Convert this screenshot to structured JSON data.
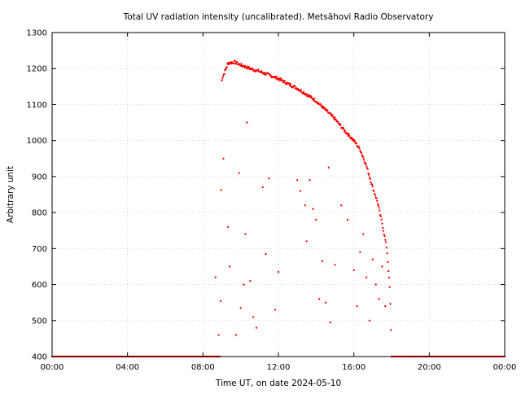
{
  "chart_data": {
    "type": "scatter",
    "title": "Total UV radiation intensity (uncalibrated). Metsähovi Radio Observatory",
    "xlabel": "Time UT, on date 2024-05-10",
    "ylabel": "Arbitrary unit",
    "xlim": [
      "00:00",
      "24:00"
    ],
    "ylim": [
      400,
      1300
    ],
    "x_ticks": [
      "00:00",
      "04:00",
      "08:00",
      "12:00",
      "16:00",
      "20:00",
      "00:00"
    ],
    "y_ticks": [
      400,
      500,
      600,
      700,
      800,
      900,
      1000,
      1100,
      1200,
      1300
    ],
    "grid": true,
    "color": "#ff0000",
    "series": [
      {
        "envelope": [
          [
            "00:00",
            400
          ],
          [
            "08:00",
            400
          ],
          [
            "08:55",
            400
          ],
          [
            "09:00",
            1170
          ],
          [
            "09:20",
            1215
          ],
          [
            "09:40",
            1218
          ],
          [
            "10:00",
            1210
          ],
          [
            "10:30",
            1200
          ],
          [
            "11:00",
            1192
          ],
          [
            "11:30",
            1182
          ],
          [
            "12:00",
            1172
          ],
          [
            "12:30",
            1158
          ],
          [
            "13:00",
            1145
          ],
          [
            "13:30",
            1128
          ],
          [
            "14:00",
            1110
          ],
          [
            "14:30",
            1085
          ],
          [
            "15:00",
            1060
          ],
          [
            "15:30",
            1028
          ],
          [
            "16:00",
            1000
          ],
          [
            "16:20",
            975
          ],
          [
            "16:40",
            930
          ],
          [
            "17:00",
            870
          ],
          [
            "17:15",
            830
          ],
          [
            "17:30",
            770
          ],
          [
            "17:45",
            700
          ],
          [
            "17:55",
            580
          ],
          [
            "18:00",
            400
          ],
          [
            "24:00",
            400
          ]
        ],
        "scatter_below_envelope": [
          [
            "08:40",
            620
          ],
          [
            "08:50",
            460
          ],
          [
            "09:05",
            950
          ],
          [
            "09:20",
            760
          ],
          [
            "09:25",
            650
          ],
          [
            "09:45",
            460
          ],
          [
            "09:55",
            910
          ],
          [
            "10:00",
            535
          ],
          [
            "10:10",
            600
          ],
          [
            "10:15",
            740
          ],
          [
            "10:20",
            1050
          ],
          [
            "10:30",
            610
          ],
          [
            "10:40",
            510
          ],
          [
            "10:50",
            480
          ],
          [
            "11:10",
            870
          ],
          [
            "11:20",
            685
          ],
          [
            "11:30",
            895
          ],
          [
            "11:50",
            530
          ],
          [
            "12:00",
            635
          ],
          [
            "13:00",
            890
          ],
          [
            "13:10",
            860
          ],
          [
            "13:25",
            820
          ],
          [
            "13:30",
            720
          ],
          [
            "13:40",
            890
          ],
          [
            "13:50",
            810
          ],
          [
            "14:00",
            780
          ],
          [
            "14:10",
            560
          ],
          [
            "14:20",
            665
          ],
          [
            "14:30",
            550
          ],
          [
            "14:40",
            925
          ],
          [
            "14:45",
            495
          ],
          [
            "15:00",
            655
          ],
          [
            "15:20",
            820
          ],
          [
            "15:40",
            780
          ],
          [
            "16:00",
            640
          ],
          [
            "16:10",
            540
          ],
          [
            "16:20",
            690
          ],
          [
            "16:30",
            740
          ],
          [
            "16:40",
            620
          ],
          [
            "16:50",
            500
          ],
          [
            "17:00",
            670
          ],
          [
            "17:10",
            600
          ],
          [
            "17:20",
            560
          ],
          [
            "17:30",
            650
          ],
          [
            "17:40",
            540
          ]
        ]
      }
    ]
  }
}
